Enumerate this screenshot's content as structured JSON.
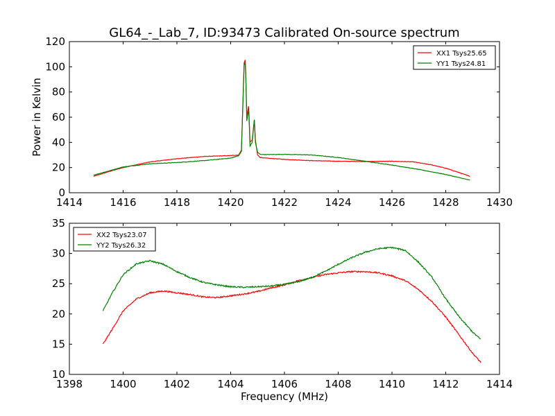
{
  "figure_title": "GL64_-_Lab_7, ID:93473 Calibrated On-source spectrum",
  "chart_data": [
    {
      "type": "line",
      "title": "GL64_-_Lab_7, ID:93473 Calibrated On-source spectrum",
      "xlabel": "",
      "ylabel": "Power in Kelvin",
      "xlim": [
        1414,
        1430
      ],
      "ylim": [
        0,
        120
      ],
      "xticks": [
        1414,
        1416,
        1418,
        1420,
        1422,
        1424,
        1426,
        1428,
        1430
      ],
      "yticks": [
        0,
        20,
        40,
        60,
        80,
        100,
        120
      ],
      "grid": false,
      "legend_position": "top-right",
      "series": [
        {
          "name": "XX1 Tsys25.65",
          "color": "#ff0000",
          "x": [
            1414.9,
            1415.5,
            1416.0,
            1417.0,
            1418.0,
            1419.0,
            1420.0,
            1420.3,
            1420.4,
            1420.5,
            1420.55,
            1420.6,
            1420.67,
            1420.72,
            1420.8,
            1420.88,
            1420.92,
            1421.0,
            1421.1,
            1421.3,
            1422.0,
            1423.0,
            1424.0,
            1425.0,
            1426.0,
            1426.8,
            1427.5,
            1428.0,
            1428.5,
            1428.9
          ],
          "y": [
            13,
            17,
            20,
            24.5,
            27,
            28.8,
            29.5,
            30,
            34,
            103,
            106,
            60,
            70,
            40,
            42,
            58,
            42,
            30,
            28,
            27.5,
            26.5,
            25.5,
            25,
            24.8,
            25,
            24.5,
            22,
            19.5,
            16,
            13
          ]
        },
        {
          "name": "YY1 Tsys24.81",
          "color": "#008000",
          "x": [
            1414.9,
            1415.5,
            1416.0,
            1417.0,
            1418.0,
            1419.0,
            1420.0,
            1420.3,
            1420.4,
            1420.5,
            1420.55,
            1420.6,
            1420.67,
            1420.72,
            1420.8,
            1420.88,
            1420.92,
            1421.0,
            1421.1,
            1421.3,
            1422.0,
            1423.0,
            1424.0,
            1425.0,
            1426.0,
            1427.0,
            1428.0,
            1428.9
          ],
          "y": [
            14,
            17.5,
            20.5,
            23,
            24,
            25.5,
            27.5,
            29.5,
            33,
            101,
            104,
            57,
            67,
            37,
            40,
            58,
            40,
            32,
            30.5,
            30.3,
            30.5,
            30,
            28,
            25,
            22,
            18.5,
            14.5,
            10
          ]
        }
      ]
    },
    {
      "type": "line",
      "title": "",
      "xlabel": "Frequency (MHz)",
      "ylabel": "",
      "xlim": [
        1398,
        1414
      ],
      "ylim": [
        10,
        35
      ],
      "xticks": [
        1398,
        1400,
        1402,
        1404,
        1406,
        1408,
        1410,
        1412,
        1414
      ],
      "yticks": [
        10,
        15,
        20,
        25,
        30,
        35
      ],
      "grid": false,
      "legend_position": "top-left",
      "series": [
        {
          "name": "XX2 Tsys23.07",
          "color": "#ff0000",
          "x": [
            1399.25,
            1399.6,
            1400.0,
            1400.5,
            1401.0,
            1401.5,
            1402.0,
            1402.5,
            1403.0,
            1403.5,
            1404.0,
            1404.5,
            1405.0,
            1405.5,
            1406.0,
            1406.5,
            1407.0,
            1407.5,
            1408.0,
            1408.5,
            1409.0,
            1409.5,
            1410.0,
            1410.5,
            1411.0,
            1411.5,
            1412.0,
            1412.5,
            1413.0,
            1413.3
          ],
          "y": [
            15,
            17.5,
            20.5,
            22.5,
            23.5,
            23.8,
            23.5,
            23.2,
            22.8,
            22.7,
            23,
            23.3,
            23.7,
            24.3,
            24.8,
            25.5,
            26,
            26.5,
            26.8,
            27,
            27,
            26.8,
            26.3,
            25.5,
            24,
            22,
            19.5,
            16.5,
            13.5,
            12
          ]
        },
        {
          "name": "YY2 Tsys26.32",
          "color": "#008000",
          "x": [
            1399.25,
            1399.6,
            1400.0,
            1400.5,
            1401.0,
            1401.5,
            1402.0,
            1402.5,
            1403.0,
            1403.5,
            1404.0,
            1404.5,
            1405.0,
            1405.5,
            1406.0,
            1406.5,
            1407.0,
            1407.5,
            1408.0,
            1408.5,
            1409.0,
            1409.5,
            1410.0,
            1410.5,
            1411.0,
            1411.5,
            1412.0,
            1412.5,
            1413.0,
            1413.3
          ],
          "y": [
            20.5,
            23.5,
            26.5,
            28.3,
            28.8,
            28.2,
            27,
            26,
            25.2,
            24.8,
            24.5,
            24.4,
            24.5,
            24.6,
            24.9,
            25.3,
            26,
            27,
            28.2,
            29.3,
            30.2,
            30.8,
            31,
            30.5,
            28.5,
            26,
            22.5,
            19.5,
            17,
            15.8
          ]
        }
      ]
    }
  ]
}
